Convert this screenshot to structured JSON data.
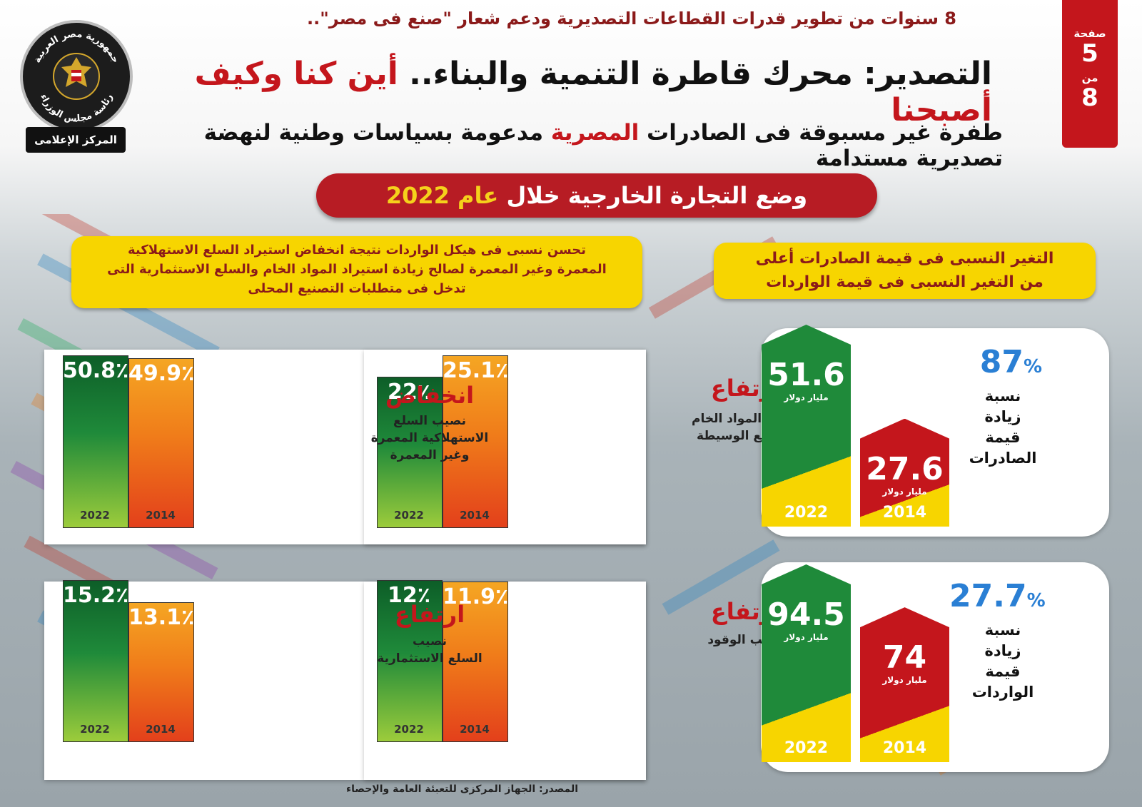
{
  "header": {
    "top_line": "8 سنوات من تطوير قدرات القطاعات التصديرية ودعم شعار \"صنع فى مصر\"..",
    "title_black": "التصدير: محرك قاطرة التنمية والبناء..",
    "title_red": "أين كنا وكيف أصبحنا",
    "subtitle_a": "طفرة غير مسبوقة فى الصادرات",
    "subtitle_red": "المصرية",
    "subtitle_b": "مدعومة بسياسات وطنية لنهضة تصديرية مستدامة",
    "page_label": "صفحة",
    "page_num": "5",
    "of_label": "من",
    "page_total": "8",
    "logo_top": "جمهورية مصر العربية",
    "logo_ring": "رئاسة مجلس الوزراء",
    "logo_tag": "المركز الإعلامى"
  },
  "banner": {
    "text": "وضع التجارة الخارجية خلال",
    "highlight": "عام 2022"
  },
  "left_note": {
    "line1": "تحسن نسبى فى هيكل الواردات نتيجة انخفاض استيراد السلع الاستهلاكية",
    "line2": "المعمرة وغير المعمرة لصالح زيادة استيراد المواد الخام والسلع الاستثمارية التى",
    "line3": "تدخل فى متطلبات التصنيع المحلى"
  },
  "right_note": {
    "line1": "التغير النسبى فى قيمة الصادرات أعلى",
    "line2": "من التغير النسبى فى قيمة الواردات"
  },
  "colors": {
    "green": "#1f8a3a",
    "orange": "#f07d1a",
    "red": "#c4161c",
    "yellow": "#f7d500",
    "blue": "#2a7fd4"
  },
  "source": "المصدر: الجهاز المركزى للتعبئة العامة والإحصاء",
  "chart_data": [
    {
      "type": "bar",
      "title": "ارتفاع",
      "desc_lines": [
        "نصيب المواد الخام",
        "والسلع الوسيطة"
      ],
      "categories": [
        "2022",
        "2014"
      ],
      "values": [
        50.8,
        49.9
      ],
      "labels": [
        "50.8٪",
        "49.9٪"
      ]
    },
    {
      "type": "bar",
      "title": "انخفاض",
      "desc_lines": [
        "نصيب السلع",
        "الاستهلاكية المعمرة",
        "وغير المعمرة"
      ],
      "categories": [
        "2022",
        "2014"
      ],
      "values": [
        22,
        25.1
      ],
      "labels": [
        "22٪",
        "25.1٪"
      ]
    },
    {
      "type": "bar",
      "title": "ارتفاع",
      "desc_lines": [
        "نصيب الوقود"
      ],
      "categories": [
        "2022",
        "2014"
      ],
      "values": [
        15.2,
        13.1
      ],
      "labels": [
        "15.2٪",
        "13.1٪"
      ]
    },
    {
      "type": "bar",
      "title": "ارتفاع",
      "desc_lines": [
        "نصيب",
        "السلع الاستثمارية"
      ],
      "categories": [
        "2022",
        "2014"
      ],
      "values": [
        12,
        11.9
      ],
      "labels": [
        "12٪",
        "11.9٪"
      ]
    },
    {
      "type": "bar",
      "categories": [
        "2022",
        "2014"
      ],
      "values": [
        51.6,
        27.6
      ],
      "labels": [
        "51.6",
        "27.6"
      ],
      "unit": "مليار دولار",
      "pct": "87",
      "pct_sign": "%",
      "desc_lines": [
        "نسبة",
        "زيادة",
        "قيمة",
        "الصادرات"
      ]
    },
    {
      "type": "bar",
      "categories": [
        "2022",
        "2014"
      ],
      "values": [
        94.5,
        74
      ],
      "labels": [
        "94.5",
        "74"
      ],
      "unit": "مليار دولار",
      "pct": "27.7",
      "pct_sign": "%",
      "desc_lines": [
        "نسبة",
        "زيادة",
        "قيمة",
        "الواردات"
      ]
    }
  ]
}
